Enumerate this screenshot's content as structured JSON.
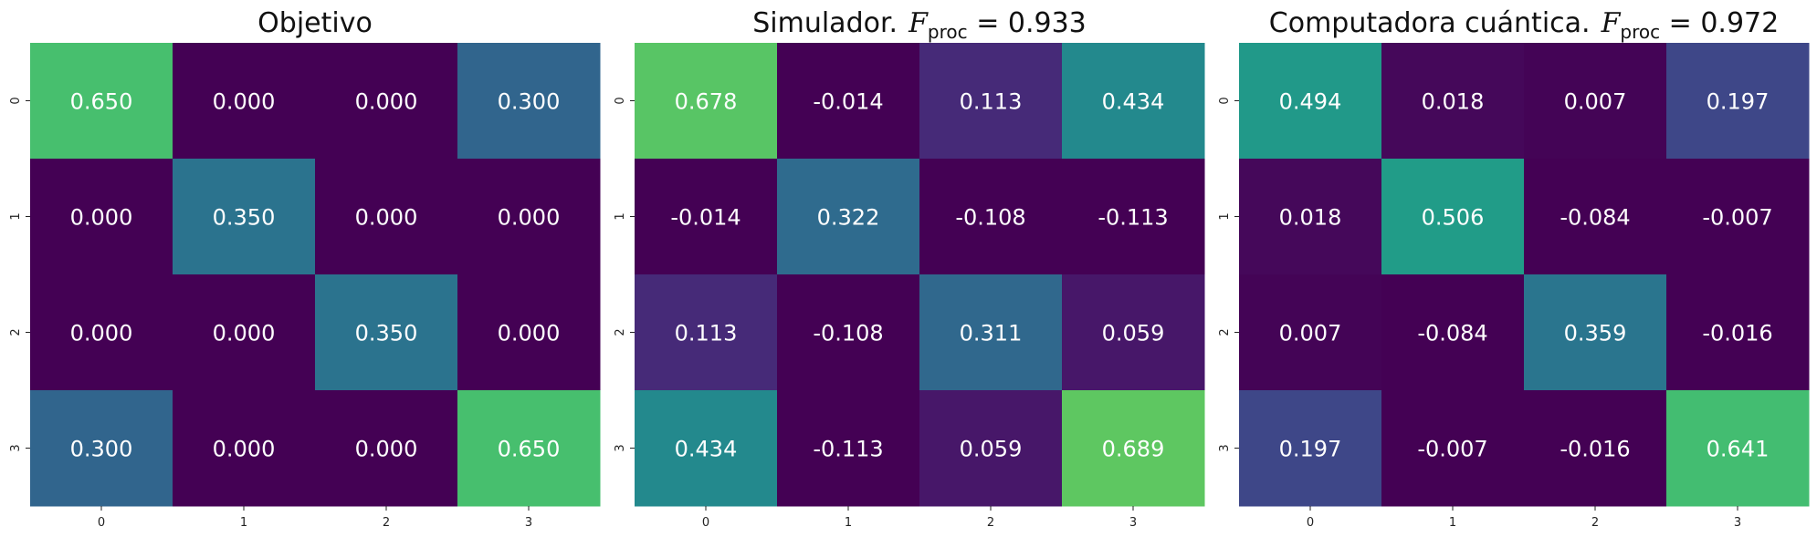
{
  "chart_data": [
    {
      "type": "heatmap",
      "title": "Objetivo",
      "fidelity_label": "",
      "fidelity_value": "",
      "x_ticks": [
        "0",
        "1",
        "2",
        "3"
      ],
      "y_ticks": [
        "0",
        "1",
        "2",
        "3"
      ],
      "values": [
        [
          0.65,
          0.0,
          0.0,
          0.3
        ],
        [
          0.0,
          0.35,
          0.0,
          0.0
        ],
        [
          0.0,
          0.0,
          0.35,
          0.0
        ],
        [
          0.3,
          0.0,
          0.0,
          0.65
        ]
      ],
      "labels": [
        [
          "0.650",
          "0.000",
          "0.000",
          "0.300"
        ],
        [
          "0.000",
          "0.350",
          "0.000",
          "0.000"
        ],
        [
          "0.000",
          "0.000",
          "0.350",
          "0.000"
        ],
        [
          "0.300",
          "0.000",
          "0.000",
          "0.650"
        ]
      ],
      "colormap": "viridis",
      "vmin": 0.0,
      "vmax": 0.92
    },
    {
      "type": "heatmap",
      "title": "Simulador.",
      "fidelity_label": "F",
      "fidelity_sub": "proc",
      "fidelity_value": "= 0.933",
      "x_ticks": [
        "0",
        "1",
        "2",
        "3"
      ],
      "y_ticks": [
        "0",
        "1",
        "2",
        "3"
      ],
      "values": [
        [
          0.678,
          -0.014,
          0.113,
          0.434
        ],
        [
          -0.014,
          0.322,
          -0.108,
          -0.113
        ],
        [
          0.113,
          -0.108,
          0.311,
          0.059
        ],
        [
          0.434,
          -0.113,
          0.059,
          0.689
        ]
      ],
      "labels": [
        [
          "0.678",
          "-0.014",
          "0.113",
          "0.434"
        ],
        [
          "-0.014",
          "0.322",
          "-0.108",
          "-0.113"
        ],
        [
          "0.113",
          "-0.108",
          "0.311",
          "0.059"
        ],
        [
          "0.434",
          "-0.113",
          "0.059",
          "0.689"
        ]
      ],
      "colormap": "viridis",
      "vmin": 0.0,
      "vmax": 0.92
    },
    {
      "type": "heatmap",
      "title": "Computadora cuántica.",
      "fidelity_label": "F",
      "fidelity_sub": "proc",
      "fidelity_value": "= 0.972",
      "x_ticks": [
        "0",
        "1",
        "2",
        "3"
      ],
      "y_ticks": [
        "0",
        "1",
        "2",
        "3"
      ],
      "values": [
        [
          0.494,
          0.018,
          0.007,
          0.197
        ],
        [
          0.018,
          0.506,
          -0.084,
          -0.007
        ],
        [
          0.007,
          -0.084,
          0.359,
          -0.016
        ],
        [
          0.197,
          -0.007,
          -0.016,
          0.641
        ]
      ],
      "labels": [
        [
          "0.494",
          "0.018",
          "0.007",
          "0.197"
        ],
        [
          "0.018",
          "0.506",
          "-0.084",
          "-0.007"
        ],
        [
          "0.007",
          "-0.084",
          "0.359",
          "-0.016"
        ],
        [
          "0.197",
          "-0.007",
          "-0.016",
          "0.641"
        ]
      ],
      "colormap": "viridis",
      "vmin": 0.0,
      "vmax": 0.92
    }
  ]
}
